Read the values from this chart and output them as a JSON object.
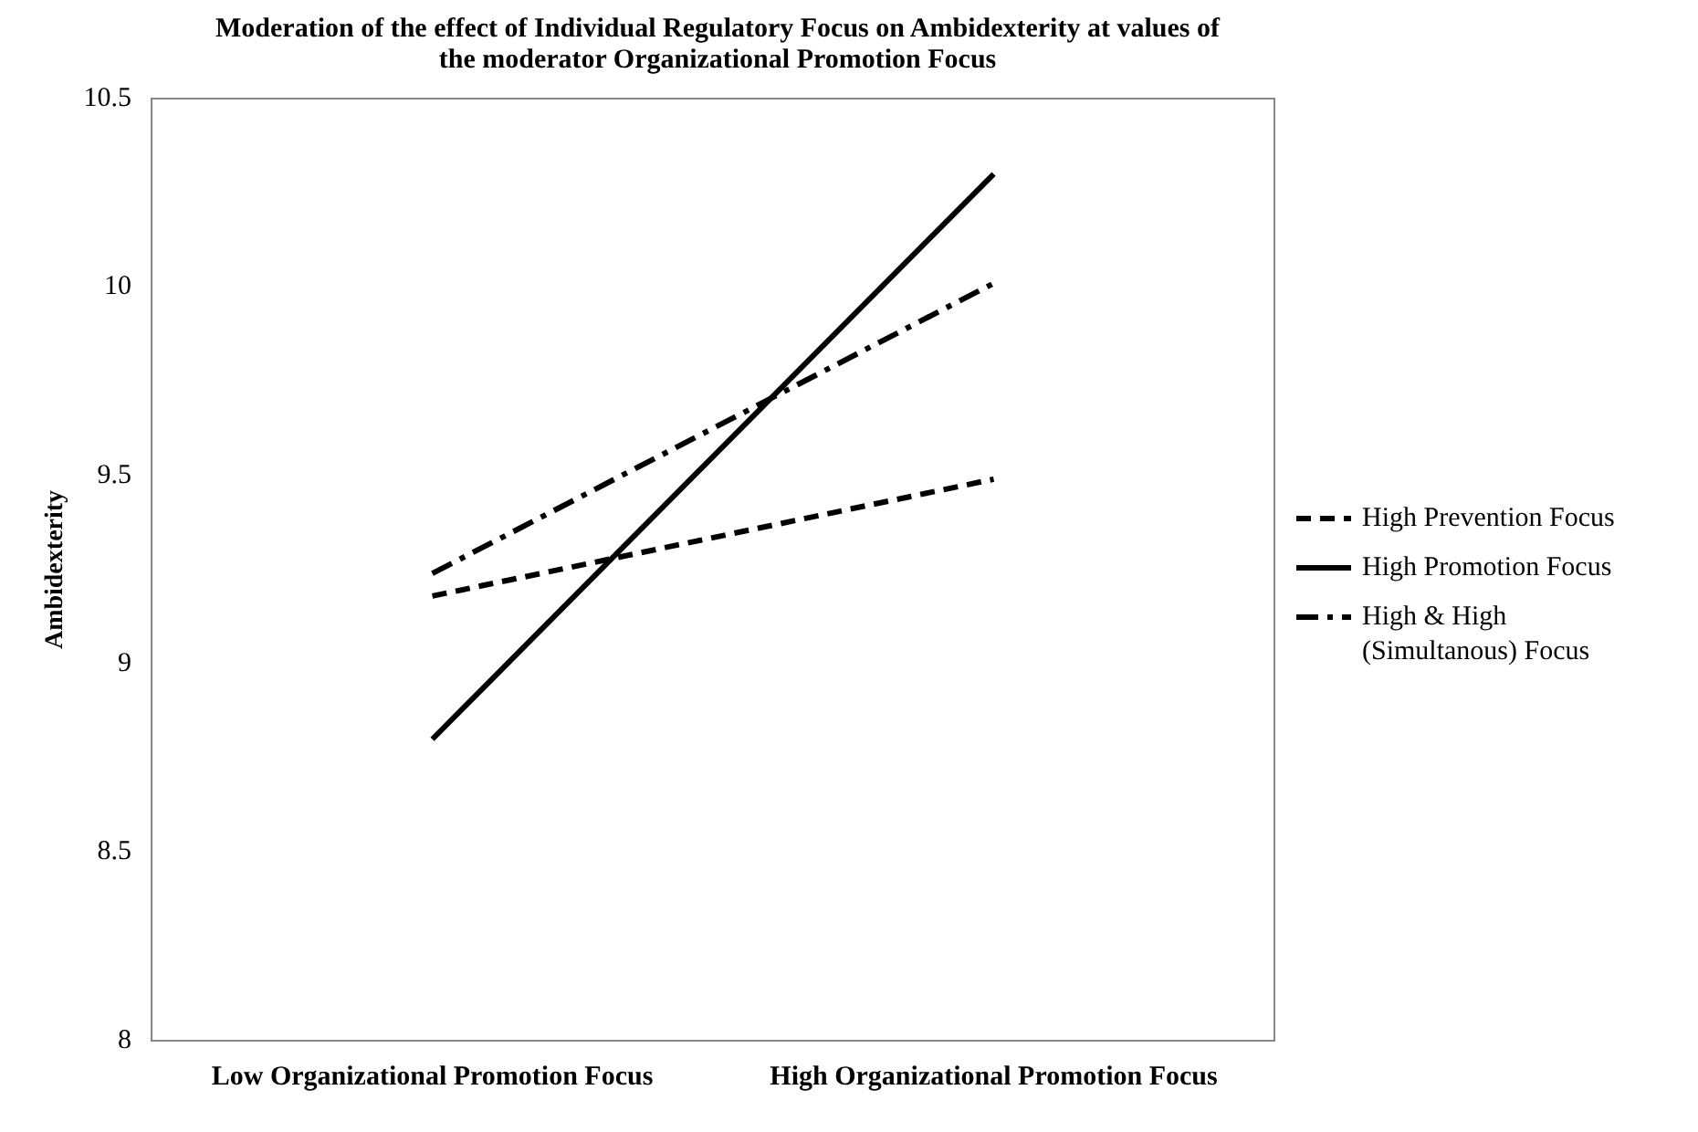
{
  "chart_data": {
    "type": "line",
    "title": "Moderation of the effect of Individual Regulatory Focus on Ambidexterity at values of the moderator Organizational Promotion Focus",
    "ylabel": "Ambidexterity",
    "categories": [
      "Low Organizational Promotion Focus",
      "High Organizational Promotion Focus"
    ],
    "series": [
      {
        "name": "High Prevention Focus",
        "color": "#000000",
        "values": [
          9.18,
          9.49
        ],
        "line_style": "dashed"
      },
      {
        "name": "High Promotion Focus",
        "color": "#000000",
        "values": [
          8.8,
          10.3
        ],
        "line_style": "solid"
      },
      {
        "name": "High & High (Simultanous) Focus",
        "color": "#000000",
        "values": [
          9.24,
          10.01
        ],
        "line_style": "dashdot"
      }
    ],
    "ylim": [
      8,
      10.5
    ],
    "yticks": [
      8,
      8.5,
      9,
      9.5,
      10,
      10.5
    ],
    "grid": false,
    "legend": "right",
    "marker": "none"
  }
}
